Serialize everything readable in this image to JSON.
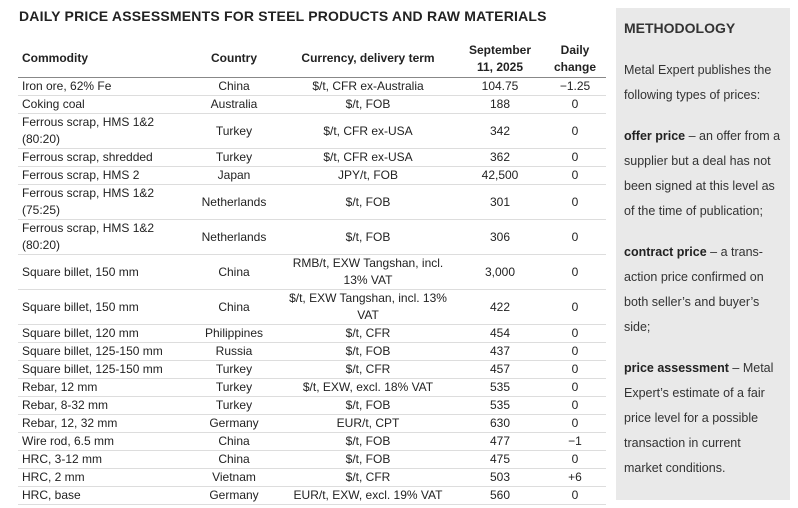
{
  "title": "DAILY PRICE ASSESSMENTS FOR STEEL PRODUCTS AND RAW MATERIALS",
  "table": {
    "header": [
      "Commodity",
      "Country",
      "Currency, delivery term",
      "September 11, 2025",
      "Daily change"
    ],
    "rows": [
      [
        "Iron ore, 62% Fe",
        "China",
        "$/t, CFR ex-Australia",
        "104.75",
        "−1.25"
      ],
      [
        "Coking coal",
        "Australia",
        "$/t, FOB",
        "188",
        "0"
      ],
      [
        "Ferrous scrap, HMS 1&2 (80:20)",
        "Turkey",
        "$/t, CFR ex-USA",
        "342",
        "0"
      ],
      [
        "Ferrous scrap, shredded",
        "Turkey",
        "$/t, CFR ex-USA",
        "362",
        "0"
      ],
      [
        "Ferrous scrap, HMS 2",
        "Japan",
        "JPY/t, FOB",
        "42,500",
        "0"
      ],
      [
        "Ferrous scrap, HMS 1&2 (75:25)",
        "Netherlands",
        "$/t, FOB",
        "301",
        "0"
      ],
      [
        "Ferrous scrap, HMS 1&2 (80:20)",
        "Netherlands",
        "$/t, FOB",
        "306",
        "0"
      ],
      [
        "Square billet, 150 mm",
        "China",
        "RMB/t, EXW Tangshan, incl. 13% VAT",
        "3,000",
        "0"
      ],
      [
        "Square billet, 150 mm",
        "China",
        "$/t, EXW Tangshan, incl. 13% VAT",
        "422",
        "0"
      ],
      [
        "Square billet, 120 mm",
        "Philippines",
        "$/t, CFR",
        "454",
        "0"
      ],
      [
        "Square billet, 125-150 mm",
        "Russia",
        "$/t, FOB",
        "437",
        "0"
      ],
      [
        "Square billet, 125-150 mm",
        "Turkey",
        "$/t, CFR",
        "457",
        "0"
      ],
      [
        "Rebar, 12 mm",
        "Turkey",
        "$/t, EXW, excl. 18% VAT",
        "535",
        "0"
      ],
      [
        "Rebar, 8-32 mm",
        "Turkey",
        "$/t, FOB",
        "535",
        "0"
      ],
      [
        "Rebar, 12, 32 mm",
        "Germany",
        "EUR/t, CPT",
        "630",
        "0"
      ],
      [
        "Wire rod, 6.5 mm",
        "China",
        "$/t, FOB",
        "477",
        "−1"
      ],
      [
        "HRC, 3-12 mm",
        "China",
        "$/t, FOB",
        "475",
        "0"
      ],
      [
        "HRC, 2 mm",
        "Vietnam",
        "$/t, CFR",
        "503",
        "+6"
      ],
      [
        "HRC, base",
        "Germany",
        "EUR/t, EXW, excl. 19% VAT",
        "560",
        "0"
      ]
    ]
  },
  "methodology": {
    "title": "METHODOLOGY",
    "intro": "Metal Expert publishes the following types of prices:",
    "items": [
      {
        "term": "offer price",
        "text": "– an offer from a supplier but a deal has not been signed at this level as of the time of publication;"
      },
      {
        "term": "contract price",
        "text": "– a trans-action price confirmed on both seller’s and buyer’s side;"
      },
      {
        "term": "price assessment",
        "text": "– Metal Expert’s estimate of a fair price level for a possible transaction in current market conditions."
      }
    ]
  }
}
